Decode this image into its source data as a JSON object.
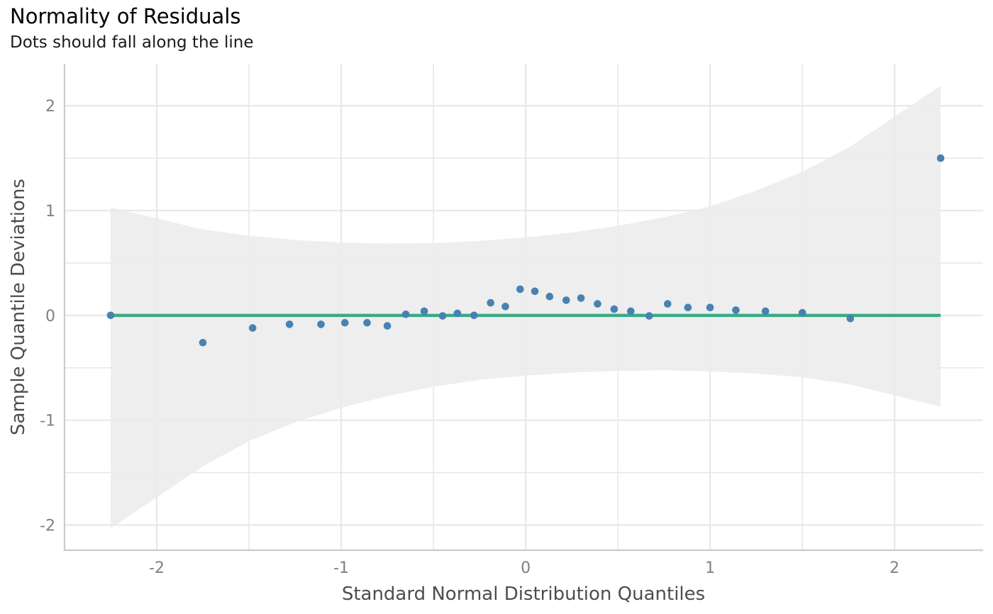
{
  "chart_data": {
    "type": "scatter",
    "title": "Normality of Residuals",
    "subtitle": "Dots should fall along the line",
    "xlabel": "Standard Normal Distribution Quantiles",
    "ylabel": "Sample Quantile Deviations",
    "xlim": [
      -2.5,
      2.48
    ],
    "ylim": [
      -2.24,
      2.4
    ],
    "x_ticks": [
      -2,
      -1,
      0,
      1,
      2
    ],
    "x_tick_labels": [
      "-2",
      "-1",
      "0",
      "1",
      "2"
    ],
    "y_ticks": [
      -2,
      -1,
      0,
      1,
      2
    ],
    "y_tick_labels": [
      "-2",
      "-1",
      "0",
      "1",
      "2"
    ],
    "grid": true,
    "colors": {
      "points": "#4682b4",
      "reference_line": "#3aaa85",
      "band": "#ebebeb",
      "grid": "#e8e8e8"
    },
    "reference_line": {
      "name": "reference",
      "x": [
        -2.25,
        2.25
      ],
      "y": [
        0,
        0
      ]
    },
    "confidence_band": {
      "x": [
        -2.25,
        -1.75,
        -1.5,
        -1.25,
        -1.0,
        -0.75,
        -0.5,
        -0.25,
        0.0,
        0.25,
        0.5,
        0.75,
        1.0,
        1.25,
        1.5,
        1.75,
        2.25
      ],
      "upper": [
        1.03,
        0.82,
        0.76,
        0.72,
        0.695,
        0.685,
        0.69,
        0.71,
        0.745,
        0.79,
        0.855,
        0.935,
        1.04,
        1.19,
        1.37,
        1.6,
        2.19
      ],
      "lower": [
        -2.03,
        -1.44,
        -1.2,
        -1.02,
        -0.88,
        -0.77,
        -0.68,
        -0.615,
        -0.575,
        -0.545,
        -0.53,
        -0.525,
        -0.535,
        -0.555,
        -0.59,
        -0.655,
        -0.87
      ]
    },
    "series": [
      {
        "name": "residual quantiles",
        "x": [
          -2.25,
          -1.75,
          -1.48,
          -1.28,
          -1.11,
          -0.98,
          -0.86,
          -0.75,
          -0.65,
          -0.55,
          -0.45,
          -0.37,
          -0.28,
          -0.19,
          -0.11,
          -0.03,
          0.05,
          0.13,
          0.22,
          0.3,
          0.39,
          0.48,
          0.57,
          0.67,
          0.77,
          0.88,
          1.0,
          1.14,
          1.3,
          1.5,
          1.76,
          2.25
        ],
        "y": [
          0.0,
          -0.26,
          -0.12,
          -0.085,
          -0.085,
          -0.07,
          -0.07,
          -0.1,
          0.01,
          0.04,
          -0.005,
          0.02,
          0.0,
          0.12,
          0.085,
          0.25,
          0.23,
          0.18,
          0.145,
          0.165,
          0.11,
          0.06,
          0.04,
          -0.005,
          0.11,
          0.075,
          0.075,
          0.05,
          0.04,
          0.025,
          -0.03,
          1.5
        ]
      }
    ]
  }
}
